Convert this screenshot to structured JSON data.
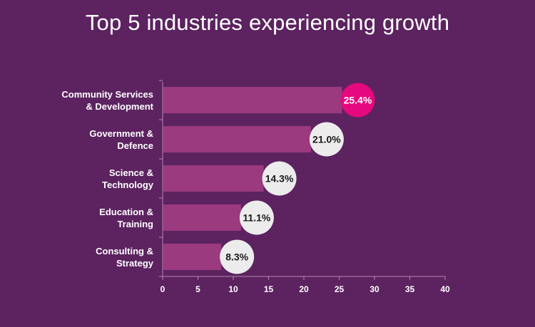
{
  "chart_data": {
    "type": "bar",
    "orientation": "horizontal",
    "title": "Top 5 industries experiencing growth",
    "categories": [
      [
        "Community Services",
        "& Development"
      ],
      [
        "Government &",
        "Defence"
      ],
      [
        "Science &",
        "Technology"
      ],
      [
        "Education &",
        "Training"
      ],
      [
        "Consulting &",
        "Strategy"
      ]
    ],
    "values": [
      25.4,
      21.0,
      14.3,
      11.1,
      8.3
    ],
    "value_labels": [
      "25.4%",
      "21.0%",
      "14.3%",
      "11.1%",
      "8.3%"
    ],
    "xlim": [
      0,
      40
    ],
    "xticks": [
      0,
      5,
      10,
      15,
      20,
      25,
      30,
      35,
      40
    ],
    "xlabel": "",
    "ylabel": "",
    "grid": false,
    "legend": "none",
    "colors": {
      "background": "#5c2360",
      "bar": "#9b3a7f",
      "axis": "#b986b5",
      "highlight_circle": "#e6087e",
      "highlight_text": "#ffffff",
      "circle": "#ececec",
      "circle_text": "#1a1a1a"
    }
  }
}
